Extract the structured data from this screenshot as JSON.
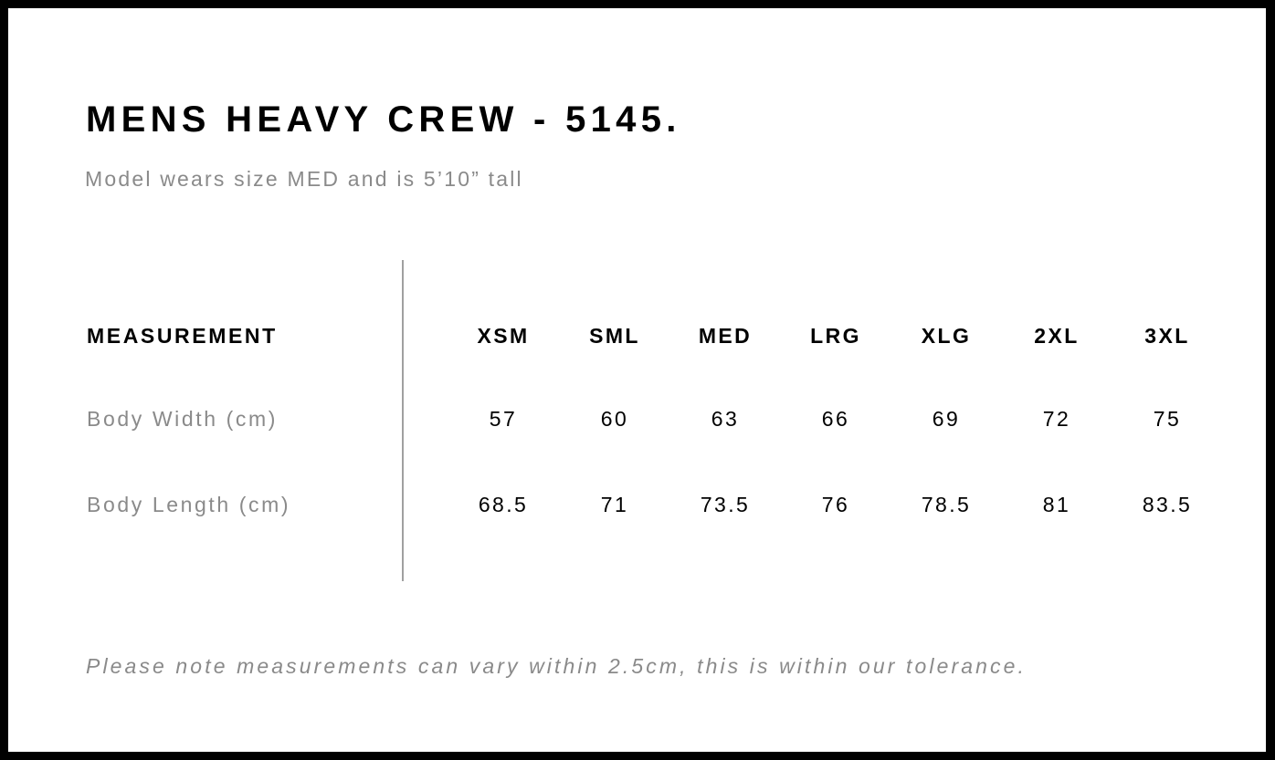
{
  "title": "MENS HEAVY CREW - 5145.",
  "subtitle": "Model wears size MED and is 5’10” tall",
  "table": {
    "header_label": "MEASUREMENT",
    "sizes": [
      "XSM",
      "SML",
      "MED",
      "LRG",
      "XLG",
      "2XL",
      "3XL"
    ],
    "rows": [
      {
        "label": "Body Width (cm)",
        "values": [
          "57",
          "60",
          "63",
          "66",
          "69",
          "72",
          "75"
        ]
      },
      {
        "label": "Body Length (cm)",
        "values": [
          "68.5",
          "71",
          "73.5",
          "76",
          "78.5",
          "81",
          "83.5"
        ]
      }
    ]
  },
  "footnote": "Please note measurements can vary within 2.5cm, this is within our tolerance."
}
